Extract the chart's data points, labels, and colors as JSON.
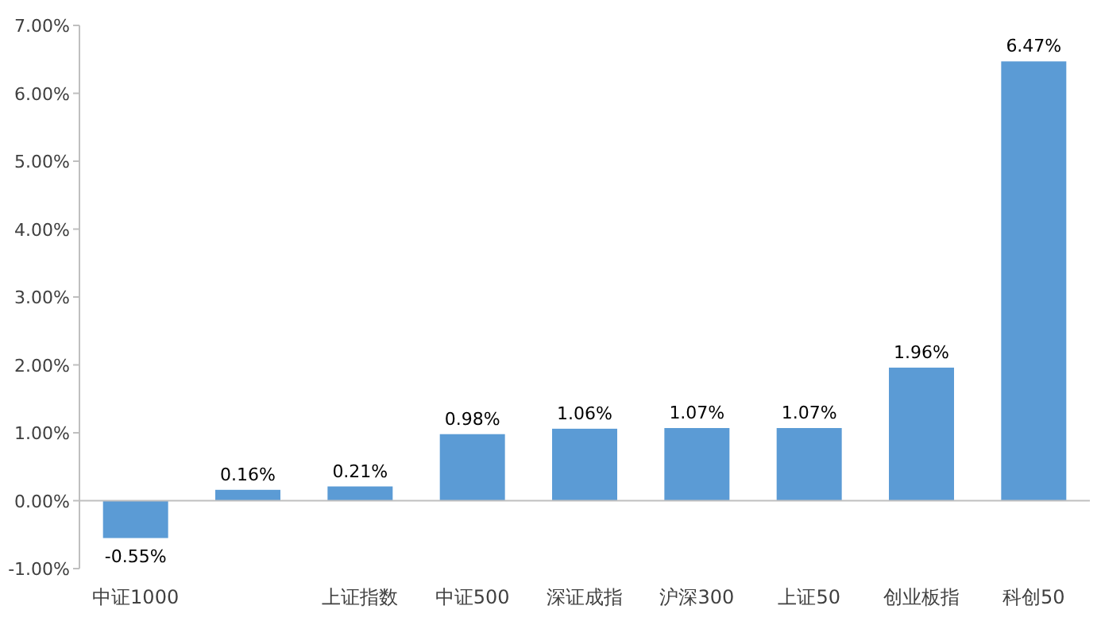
{
  "chart_data": {
    "type": "bar",
    "categories": [
      "中证1000",
      null,
      "上证指数",
      "中证500",
      "深证成指",
      "沪深300",
      "上证50",
      "创业板指",
      "科创50"
    ],
    "values": [
      -0.55,
      0.16,
      0.21,
      0.98,
      1.06,
      1.07,
      1.07,
      1.96,
      6.47
    ],
    "value_labels": [
      "-0.55%",
      "0.16%",
      "0.21%",
      "0.98%",
      "1.06%",
      "1.07%",
      "1.07%",
      "1.96%",
      "6.47%"
    ],
    "color": "#5b9bd5",
    "ylim": [
      -1,
      7
    ],
    "yticks": [
      {
        "value": -1,
        "label": "-1.00%"
      },
      {
        "value": 0,
        "label": "0.00%"
      },
      {
        "value": 1,
        "label": "1.00%"
      },
      {
        "value": 2,
        "label": "2.00%"
      },
      {
        "value": 3,
        "label": "3.00%"
      },
      {
        "value": 4,
        "label": "4.00%"
      },
      {
        "value": 5,
        "label": "5.00%"
      },
      {
        "value": 6,
        "label": "6.00%"
      },
      {
        "value": 7,
        "label": "7.00%"
      }
    ]
  }
}
